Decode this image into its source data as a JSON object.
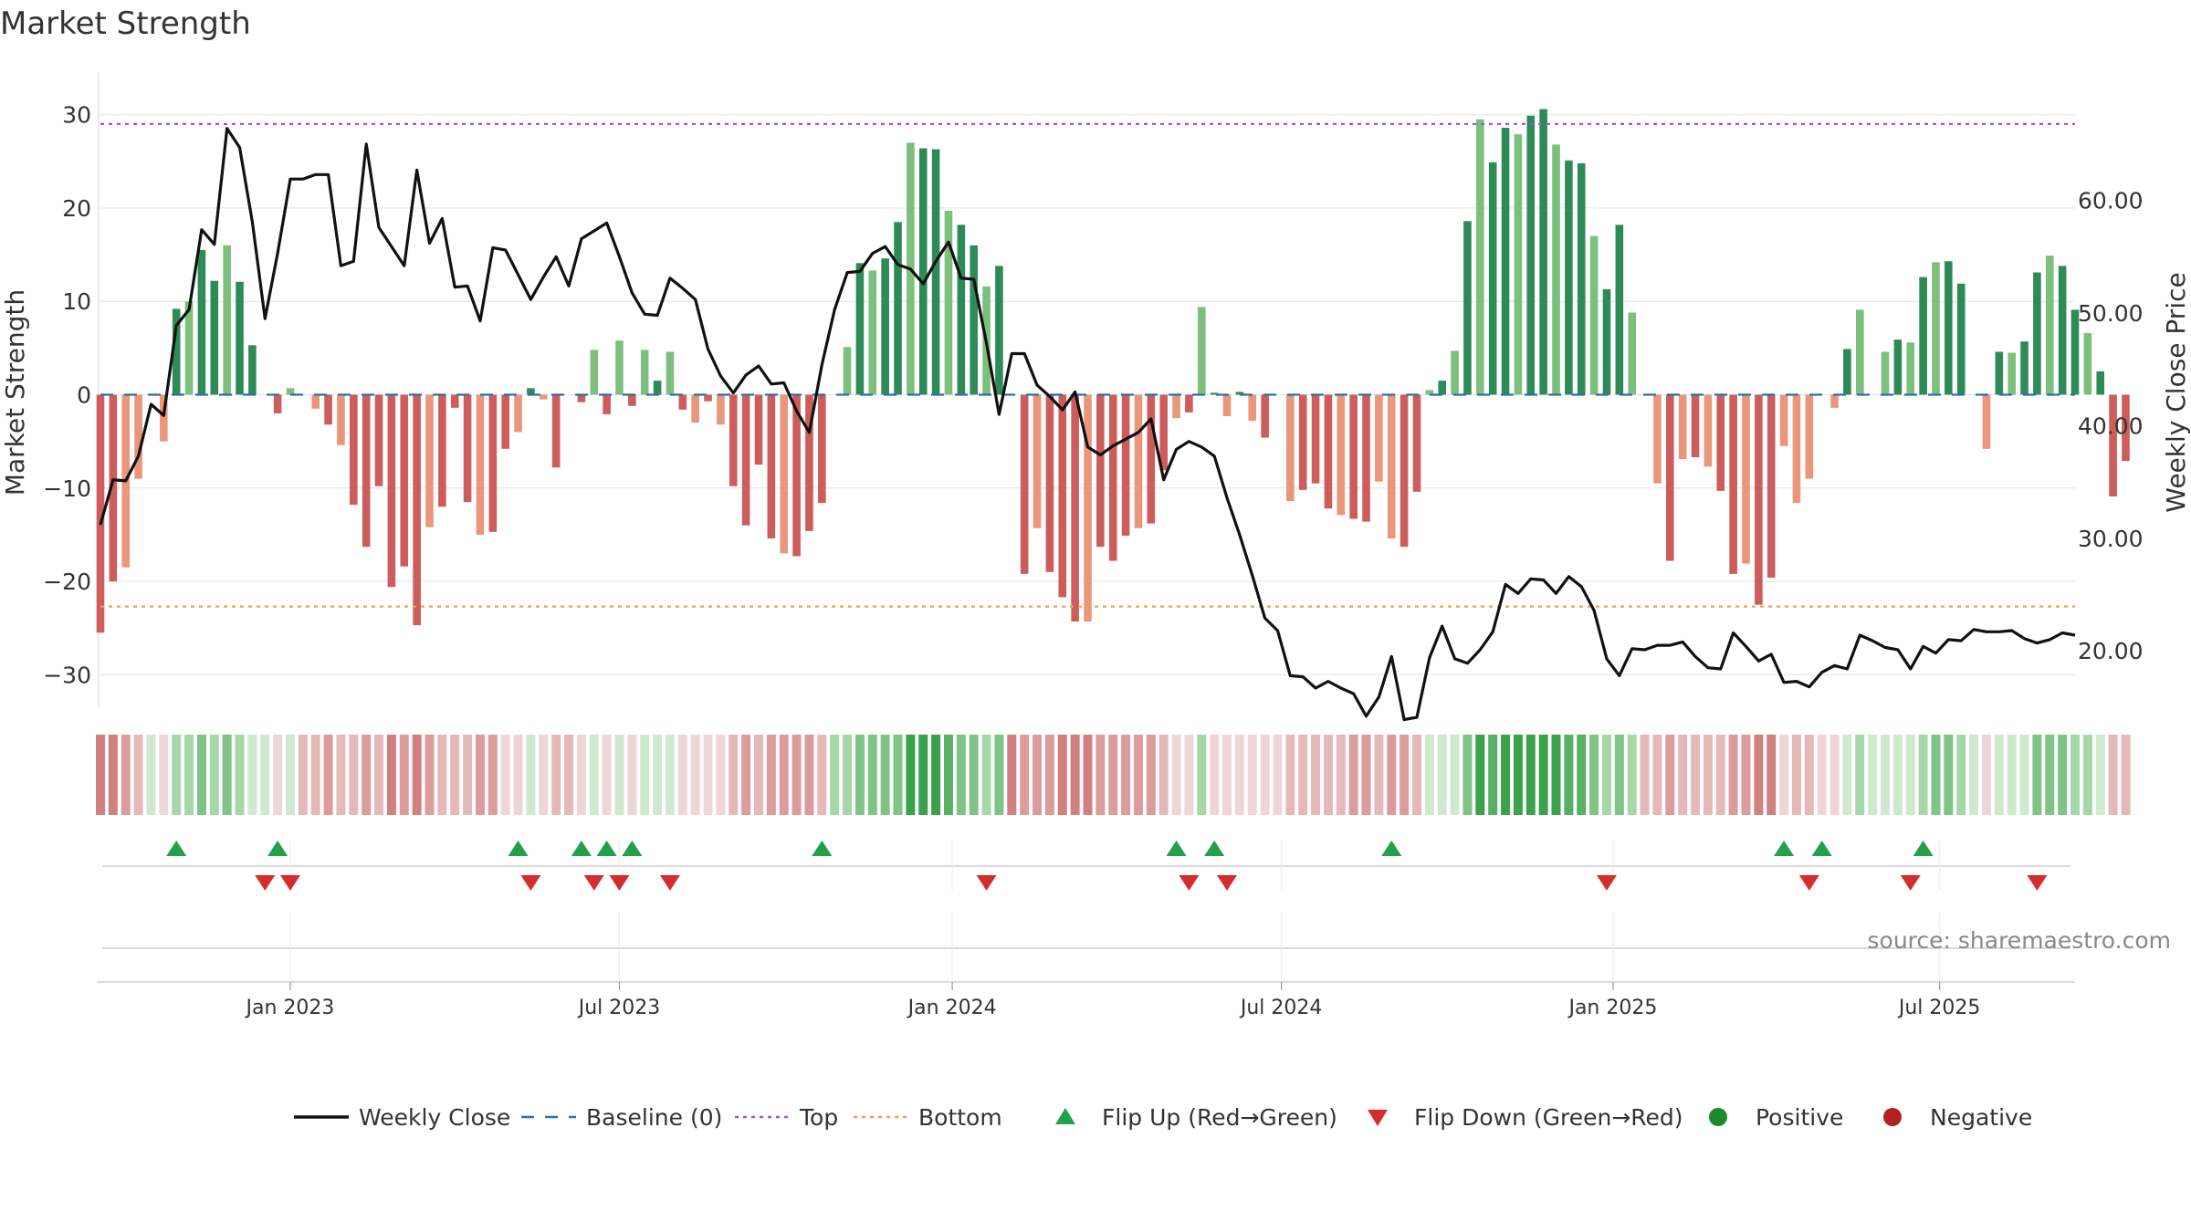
{
  "chart_data": {
    "type": "bar",
    "title": "Market Strength",
    "ylabel_left": "Market Strength",
    "ylabel_right": "Weekly Close Price",
    "source": "source: sharemaestro.com",
    "ylim_left": [
      -33,
      33
    ],
    "yticks_left": [
      30,
      20,
      10,
      0,
      -10,
      -20,
      -30
    ],
    "ytick_labels_left": [
      "30",
      "20",
      "10",
      "0",
      "−10",
      "−20",
      "−30"
    ],
    "ylim_right": [
      15.4,
      70.1
    ],
    "yticks_right": [
      60,
      50,
      40,
      30,
      20
    ],
    "ytick_labels_right": [
      "60.00",
      "50.00",
      "40.00",
      "30.00",
      "20.00"
    ],
    "x_start_week": 0,
    "x_end_week": 156,
    "x_ticks": [
      {
        "label": "Jan 2023",
        "week": 15
      },
      {
        "label": "Jul 2023",
        "week": 41
      },
      {
        "label": "Jan 2024",
        "week": 67.3
      },
      {
        "label": "Jul 2024",
        "week": 93.3
      },
      {
        "label": "Jan 2025",
        "week": 119.5
      },
      {
        "label": "Jul 2025",
        "week": 145.3
      }
    ],
    "top_threshold": 29,
    "bottom_threshold": -22.7,
    "strength_values": [
      -25.5,
      -20,
      -18.5,
      -9,
      0,
      -5,
      9.2,
      10,
      15.5,
      12.2,
      16,
      12.1,
      5.3,
      0,
      -2,
      0.7,
      0,
      -1.5,
      -3.2,
      -5.4,
      -11.8,
      -16.3,
      -9.8,
      -20.6,
      -18.4,
      -24.7,
      -14.2,
      -12,
      -1.4,
      -11.5,
      -15,
      -14.7,
      -5.8,
      -4,
      0.7,
      -0.5,
      -7.8,
      0,
      -0.8,
      4.8,
      -2.1,
      5.8,
      -1.2,
      4.8,
      1.5,
      4.6,
      -1.6,
      -3,
      -0.7,
      -3.2,
      -9.8,
      -14,
      -7.5,
      -15.4,
      -17,
      -17.3,
      -14.6,
      -11.6,
      0,
      5.1,
      14.1,
      13.3,
      14.6,
      18.5,
      27,
      26.4,
      26.3,
      19.7,
      18.2,
      16,
      11.6,
      13.8,
      0,
      -19.2,
      -14.3,
      -19,
      -21.7,
      -24.3,
      -24.3,
      -16.3,
      -17.8,
      -15.1,
      -14.3,
      -13.8,
      -8.1,
      -2.5,
      -1.9,
      9.4,
      0.2,
      -2.3,
      0.3,
      -2.8,
      -4.6,
      0,
      -11.4,
      -10.2,
      -9.5,
      -12.2,
      -12.9,
      -13.3,
      -13.6,
      -9.3,
      -15.4,
      -16.3,
      -10.4,
      0.5,
      1.5,
      4.7,
      18.6,
      29.5,
      24.9,
      28.6,
      27.9,
      29.9,
      30.6,
      26.8,
      25.1,
      24.8,
      17,
      11.3,
      18.2,
      8.8,
      0,
      -9.5,
      -17.8,
      -6.9,
      -6.7,
      -7.7,
      -10.3,
      -19.2,
      -18.1,
      -22.5,
      -19.6,
      -5.5,
      -11.6,
      -9,
      0,
      -1.4,
      4.9,
      9.1,
      0,
      4.6,
      5.9,
      5.6,
      12.6,
      14.2,
      14.3,
      11.9,
      0,
      -5.8,
      4.6,
      4.5,
      5.7,
      13.1,
      14.9,
      13.8,
      9.1,
      6.6,
      2.5,
      -10.9,
      -7.1
    ],
    "weekly_close_values": [
      31.2,
      35.2,
      35.1,
      37.3,
      41.9,
      40.9,
      48.9,
      50.3,
      57.4,
      56.1,
      66.4,
      64.7,
      58.1,
      49.5,
      55.3,
      61.9,
      61.9,
      62.3,
      62.3,
      54.2,
      54.6,
      65,
      57.6,
      55.9,
      54.2,
      62.7,
      56.2,
      58.4,
      52.3,
      52.4,
      49.3,
      55.8,
      55.6,
      53.4,
      51.2,
      53.2,
      55,
      52.4,
      56.6,
      57.3,
      58,
      55,
      51.8,
      49.9,
      49.8,
      53.1,
      52.2,
      51.2,
      46.8,
      44.4,
      42.9,
      44.5,
      45.3,
      43.7,
      43.8,
      41.3,
      39.4,
      45.4,
      50.3,
      53.6,
      53.7,
      55.3,
      55.9,
      54.3,
      53.9,
      52.6,
      54.6,
      56.3,
      53.1,
      53,
      47.3,
      41,
      46.4,
      46.4,
      43.6,
      42.6,
      41.4,
      43,
      38.1,
      37.4,
      38.2,
      38.8,
      39.4,
      40.6,
      35.2,
      37.9,
      38.6,
      38.1,
      37.3,
      33.6,
      30.3,
      26.7,
      22.9,
      21.8,
      17.8,
      17.7,
      16.7,
      17.3,
      16.7,
      16.2,
      14.2,
      15.9,
      19.5,
      13.9,
      14.1,
      19.4,
      22.2,
      19.3,
      18.9,
      20.1,
      21.7,
      25.9,
      25.1,
      26.4,
      26.3,
      25.1,
      26.6,
      25.7,
      23.6,
      19.3,
      17.8,
      20.2,
      20.1,
      20.5,
      20.5,
      20.8,
      19.5,
      18.5,
      18.4,
      21.6,
      20.4,
      19.1,
      19.7,
      17.2,
      17.3,
      16.8,
      18.1,
      18.7,
      18.4,
      21.4,
      20.9,
      20.3,
      20.1,
      18.4,
      20.4,
      19.8,
      21,
      20.9,
      21.9,
      21.7,
      21.7,
      21.8,
      21.1,
      20.7,
      21,
      21.6,
      21.4
    ],
    "tile_values": [
      -25.5,
      -20,
      -18.5,
      -9,
      0,
      -5,
      9.2,
      10,
      15.5,
      12.2,
      16,
      12.1,
      5.3,
      0,
      -2,
      0.7,
      -9,
      -9,
      -15,
      -10,
      -11.8,
      -16.3,
      -9.8,
      -20.6,
      -18.4,
      -24.7,
      -14.2,
      -12,
      -10,
      -11.5,
      -15,
      -14.7,
      -5.8,
      -4,
      0.7,
      -0.5,
      -7.8,
      -8,
      -0.8,
      4.8,
      -2.1,
      5.8,
      -1.2,
      4.8,
      1.5,
      4.6,
      -1.6,
      -3,
      -4,
      -3.2,
      -9.8,
      -14,
      -7.5,
      -15.4,
      -17,
      -17.3,
      -14.6,
      -11.6,
      10,
      12,
      14.1,
      13.3,
      14.6,
      18.5,
      27,
      26.4,
      26.3,
      19.7,
      18.2,
      16,
      11.6,
      13.8,
      -20,
      -19.2,
      -14.3,
      -19,
      -21.7,
      -24.3,
      -24.3,
      -16.3,
      -17.8,
      -15.1,
      -14.3,
      -13.8,
      -8.1,
      -2.5,
      -1.9,
      9.4,
      -3,
      -2.3,
      -4,
      -2.8,
      -4.6,
      -4,
      -11.4,
      -10.2,
      -9.5,
      -12.2,
      -12.9,
      -13.3,
      -13.6,
      -9.3,
      -15.4,
      -16.3,
      -10.4,
      3,
      4,
      4.7,
      18.6,
      29.5,
      24.9,
      28.6,
      27.9,
      29.9,
      30.6,
      26.8,
      25.1,
      24.8,
      17,
      11.3,
      18.2,
      8.8,
      -12,
      -9.5,
      -17.8,
      -6.9,
      -6.7,
      -7.7,
      -10.3,
      -19.2,
      -18.1,
      -22.5,
      -19.6,
      -5.5,
      -11.6,
      -9,
      -4,
      -1.4,
      4.9,
      9.1,
      4,
      4.6,
      5.9,
      5.6,
      12.6,
      14.2,
      14.3,
      11.9,
      4,
      -5.8,
      4.6,
      4.5,
      5.7,
      13.1,
      14.9,
      13.8,
      9.1,
      6.6,
      2.5,
      -10.9,
      -7.1
    ],
    "flip_up_weeks": [
      6,
      14,
      33,
      38,
      40,
      42,
      57,
      85,
      88,
      102,
      133,
      136,
      144
    ],
    "flip_down_weeks": [
      13,
      15,
      34,
      39,
      41,
      45,
      70,
      86,
      89,
      119,
      135,
      143,
      153
    ],
    "legend": [
      {
        "label": "Weekly Close",
        "kind": "line",
        "color": "#111111"
      },
      {
        "label": "Baseline (0)",
        "kind": "dash",
        "color": "#2f6fa7"
      },
      {
        "label": "Top",
        "kind": "dot",
        "color": "#9b59d0"
      },
      {
        "label": "Bottom",
        "kind": "dot",
        "color": "#f0a050"
      },
      {
        "label": "Flip Up (Red→Green)",
        "kind": "tri-up",
        "color": "#22a04a"
      },
      {
        "label": "Flip Down (Green→Red)",
        "kind": "tri-down",
        "color": "#d62c2c"
      },
      {
        "label": "Positive",
        "kind": "circle",
        "color": "#1e8a2e"
      },
      {
        "label": "Negative",
        "kind": "circle",
        "color": "#b22222"
      }
    ],
    "colors": {
      "pos_dark": "#2e8b57",
      "pos_light": "#7dbf7d",
      "neg_dark": "#cd5c5c",
      "neg_light": "#e9967a",
      "close_line": "#111111",
      "baseline": "#2f6fa7",
      "top": "#9b59d0",
      "bottom": "#f0a050"
    }
  }
}
